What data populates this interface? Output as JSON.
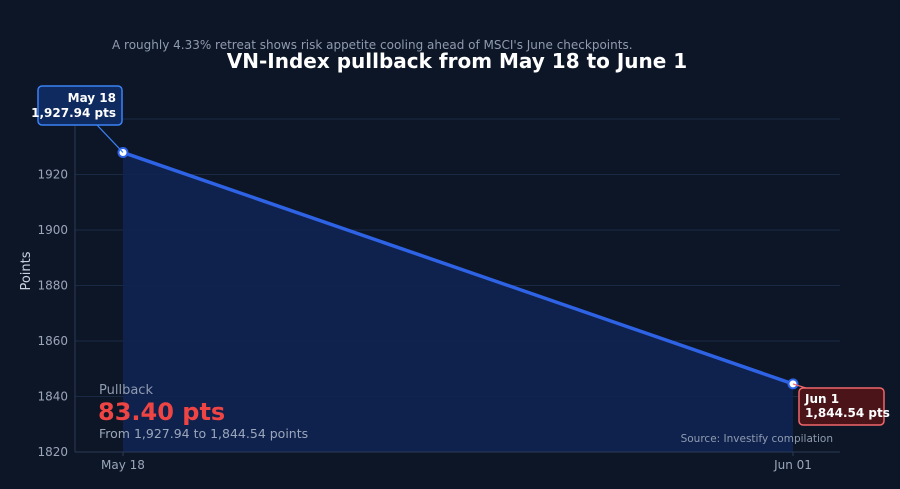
{
  "chart_data": {
    "type": "area",
    "title": "VN-Index pullback from May 18 to June 1",
    "subtitle": "A roughly 4.33% retreat shows risk appetite cooling ahead of MSCI's June checkpoints.",
    "ylabel": "Points",
    "xlabel": "",
    "ylim": [
      1820,
      1940
    ],
    "yticks": [
      1820,
      1840,
      1860,
      1880,
      1900,
      1920
    ],
    "grid": true,
    "x": [
      "May 18",
      "Jun 01"
    ],
    "series": [
      {
        "values": [
          1927.94,
          1844.54
        ]
      }
    ],
    "annotations": {
      "start": {
        "line1": "May 18",
        "line2": "1,927.94 pts"
      },
      "end": {
        "line1": "Jun 1",
        "line2": "1,844.54 pts"
      }
    },
    "pullback": {
      "label": "Pullback",
      "value": "83.40 pts",
      "detail": "From 1,927.94 to 1,844.54 points"
    },
    "source": "Source: Investify compilation",
    "colors": {
      "line": "#2f63e6",
      "area": "#0f2352",
      "negative": "#ef4444"
    }
  }
}
